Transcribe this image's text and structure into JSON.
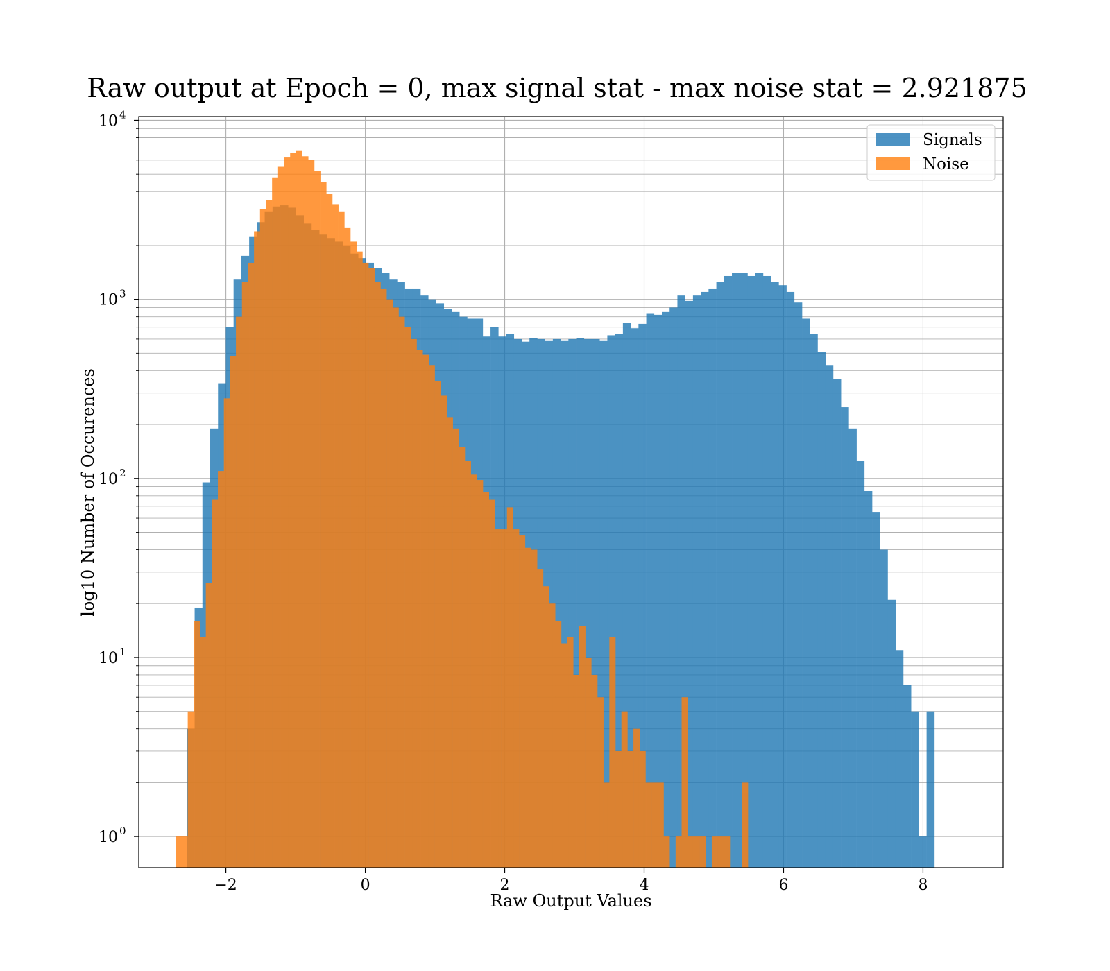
{
  "chart_data": {
    "type": "bar",
    "title": "Raw output at Epoch = 0, max signal stat - max noise stat = 2.921875",
    "xlabel": "Raw Output Values",
    "ylabel": "log10 Number of Occurences",
    "xlim": [
      -3.25,
      9.15
    ],
    "ylim": [
      0.67,
      10500
    ],
    "yscale": "log",
    "grid": true,
    "legend_position": "top-right",
    "x_ticks": [
      {
        "value": -2,
        "label": "−2"
      },
      {
        "value": 0,
        "label": "0"
      },
      {
        "value": 2,
        "label": "2"
      },
      {
        "value": 4,
        "label": "4"
      },
      {
        "value": 6,
        "label": "6"
      },
      {
        "value": 8,
        "label": "8"
      }
    ],
    "y_ticks": [
      {
        "value": 1,
        "base": "10",
        "exp": "0"
      },
      {
        "value": 10,
        "base": "10",
        "exp": "1"
      },
      {
        "value": 100,
        "base": "10",
        "exp": "2"
      },
      {
        "value": 1000,
        "base": "10",
        "exp": "3"
      },
      {
        "value": 10000,
        "base": "10",
        "exp": "4"
      }
    ],
    "series": [
      {
        "name": "Signals",
        "color": "#1f77b4",
        "opacity": 0.8,
        "x_start": -2.56,
        "bin_width": 0.1117,
        "values": [
          4,
          19,
          95,
          190,
          340,
          700,
          1300,
          1750,
          2250,
          2700,
          3100,
          3300,
          3350,
          3250,
          2950,
          2650,
          2450,
          2300,
          2200,
          2100,
          2000,
          1800,
          1700,
          1600,
          1500,
          1400,
          1300,
          1250,
          1150,
          1150,
          1050,
          1000,
          950,
          880,
          850,
          800,
          780,
          780,
          620,
          700,
          620,
          640,
          600,
          580,
          610,
          600,
          590,
          600,
          590,
          600,
          610,
          600,
          600,
          590,
          630,
          640,
          740,
          690,
          730,
          830,
          820,
          850,
          900,
          1050,
          980,
          1050,
          1100,
          1150,
          1250,
          1350,
          1400,
          1400,
          1350,
          1400,
          1350,
          1250,
          1200,
          1100,
          960,
          780,
          640,
          510,
          430,
          360,
          250,
          190,
          125,
          85,
          65,
          40,
          21,
          11,
          7,
          5,
          1,
          5
        ]
      },
      {
        "name": "Noise",
        "color": "#ff7f0e",
        "opacity": 0.8,
        "x_start": -2.72,
        "bin_width": 0.0864,
        "values": [
          1,
          1,
          5,
          16,
          13,
          26,
          76,
          110,
          280,
          480,
          800,
          1250,
          1600,
          2400,
          3200,
          3600,
          4800,
          5500,
          6200,
          6600,
          6800,
          6300,
          6000,
          5200,
          4500,
          3900,
          3400,
          3100,
          2500,
          2100,
          1850,
          1600,
          1500,
          1250,
          1150,
          1000,
          900,
          800,
          700,
          600,
          520,
          490,
          430,
          350,
          290,
          220,
          190,
          150,
          125,
          105,
          98,
          84,
          76,
          52,
          52,
          69,
          52,
          48,
          41,
          40,
          31,
          25,
          20,
          16,
          12,
          13,
          8,
          15,
          10,
          8,
          6,
          2,
          13,
          3,
          5,
          3,
          4,
          3,
          2,
          2,
          2,
          1,
          0,
          1,
          6,
          1,
          1,
          1,
          0,
          1,
          1,
          1,
          0,
          0,
          2,
          0,
          0,
          0,
          0,
          0,
          0,
          0,
          0
        ]
      }
    ]
  }
}
